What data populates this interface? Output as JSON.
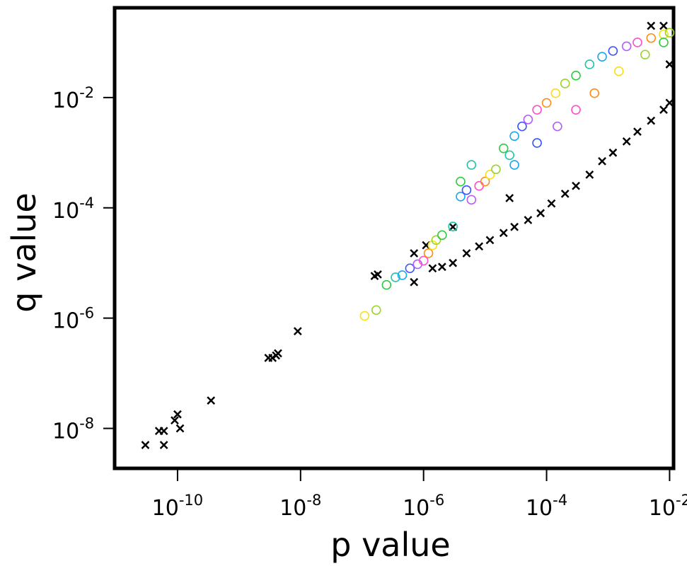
{
  "chart_data": {
    "type": "scatter",
    "title": "",
    "xlabel": "p value",
    "ylabel": "q value",
    "x_scale": "log10",
    "y_scale": "log10",
    "xlim": [
      1e-11,
      0.011
    ],
    "ylim": [
      2e-09,
      0.4
    ],
    "x_ticks": [
      {
        "value": 1e-10,
        "base": "10",
        "exp": "-10"
      },
      {
        "value": 1e-08,
        "base": "10",
        "exp": "-8"
      },
      {
        "value": 1e-06,
        "base": "10",
        "exp": "-6"
      },
      {
        "value": 0.0001,
        "base": "10",
        "exp": "-4"
      },
      {
        "value": 0.01,
        "base": "10",
        "exp": "-2"
      }
    ],
    "y_ticks": [
      {
        "value": 1e-08,
        "base": "10",
        "exp": "-8"
      },
      {
        "value": 1e-06,
        "base": "10",
        "exp": "-6"
      },
      {
        "value": 0.0001,
        "base": "10",
        "exp": "-4"
      },
      {
        "value": 0.01,
        "base": "10",
        "exp": "-2"
      }
    ],
    "grid": false,
    "legend": "none",
    "series": [
      {
        "marker": "x",
        "color": "#000000",
        "points": [
          [
            3e-11,
            5e-09
          ],
          [
            5e-11,
            9e-09
          ],
          [
            6e-11,
            9e-09
          ],
          [
            6e-11,
            5e-09
          ],
          [
            9e-11,
            1.4e-08
          ],
          [
            1e-10,
            1.8e-08
          ],
          [
            1.1e-10,
            1e-08
          ],
          [
            3.5e-10,
            3.2e-08
          ],
          [
            3e-09,
            1.9e-07
          ],
          [
            3.5e-09,
            1.9e-07
          ],
          [
            4e-09,
            2.1e-07
          ],
          [
            4.3e-09,
            2.3e-07
          ],
          [
            9e-09,
            5.8e-07
          ],
          [
            1.6e-07,
            5.8e-06
          ],
          [
            1.8e-07,
            6.2e-06
          ],
          [
            7e-07,
            1.5e-05
          ],
          [
            7e-07,
            4.5e-06
          ],
          [
            1.1e-06,
            2.1e-05
          ],
          [
            1.4e-06,
            8e-06
          ],
          [
            2e-06,
            8.5e-06
          ],
          [
            3e-06,
            1e-05
          ],
          [
            5e-06,
            1.5e-05
          ],
          [
            8e-06,
            2e-05
          ],
          [
            1.2e-05,
            2.6e-05
          ],
          [
            2e-05,
            3.5e-05
          ],
          [
            3e-05,
            4.5e-05
          ],
          [
            5e-05,
            6e-05
          ],
          [
            8e-05,
            8e-05
          ],
          [
            0.00012,
            0.00012
          ],
          [
            0.0002,
            0.00018
          ],
          [
            0.0003,
            0.00025
          ],
          [
            0.0005,
            0.0004
          ],
          [
            0.0008,
            0.0007
          ],
          [
            0.0012,
            0.001
          ],
          [
            0.002,
            0.0016
          ],
          [
            0.003,
            0.0024
          ],
          [
            0.005,
            0.0038
          ],
          [
            0.008,
            0.006
          ],
          [
            0.01,
            0.008
          ],
          [
            0.01,
            0.04
          ],
          [
            0.005,
            0.2
          ],
          [
            0.008,
            0.2
          ],
          [
            3e-06,
            4.5e-05
          ],
          [
            2.5e-05,
            0.00015
          ]
        ]
      },
      {
        "marker": "o",
        "colors": [
          "#f6e01a",
          "#9bd42a",
          "#2ecc40",
          "#22c5a6",
          "#1aa8ef",
          "#3a53ff",
          "#b05cff",
          "#ff4fc8",
          "#ff8c1a"
        ],
        "points": [
          [
            1.1e-07,
            1.1e-06
          ],
          [
            1.7e-07,
            1.4e-06
          ],
          [
            2.5e-07,
            4e-06
          ],
          [
            3.5e-07,
            5.5e-06
          ],
          [
            4.5e-07,
            6e-06
          ],
          [
            6e-07,
            8e-06
          ],
          [
            8e-07,
            9.5e-06
          ],
          [
            1e-06,
            1.1e-05
          ],
          [
            1.2e-06,
            1.5e-05
          ],
          [
            1.4e-06,
            2.1e-05
          ],
          [
            1.6e-06,
            2.6e-05
          ],
          [
            2e-06,
            3.2e-05
          ],
          [
            3e-06,
            4.6e-05
          ],
          [
            4e-06,
            0.00016
          ],
          [
            5e-06,
            0.00021
          ],
          [
            6e-06,
            0.00014
          ],
          [
            8e-06,
            0.00025
          ],
          [
            1e-05,
            0.0003
          ],
          [
            1.2e-05,
            0.0004
          ],
          [
            1.5e-05,
            0.0005
          ],
          [
            2e-05,
            0.0012
          ],
          [
            2.5e-05,
            0.0009
          ],
          [
            3e-05,
            0.002
          ],
          [
            4e-05,
            0.003
          ],
          [
            5e-05,
            0.004
          ],
          [
            7e-05,
            0.006
          ],
          [
            0.0001,
            0.008
          ],
          [
            0.00014,
            0.012
          ],
          [
            0.0002,
            0.018
          ],
          [
            0.0003,
            0.025
          ],
          [
            0.0005,
            0.04
          ],
          [
            0.0008,
            0.055
          ],
          [
            0.0012,
            0.07
          ],
          [
            0.002,
            0.085
          ],
          [
            0.003,
            0.1
          ],
          [
            0.005,
            0.12
          ],
          [
            0.008,
            0.14
          ],
          [
            0.01,
            0.15
          ],
          [
            4e-06,
            0.0003
          ],
          [
            6e-06,
            0.0006
          ],
          [
            3e-05,
            0.0006
          ],
          [
            7e-05,
            0.0015
          ],
          [
            0.00015,
            0.003
          ],
          [
            0.0003,
            0.006
          ],
          [
            0.0006,
            0.012
          ],
          [
            0.0015,
            0.03
          ],
          [
            0.004,
            0.06
          ],
          [
            0.008,
            0.1
          ]
        ]
      }
    ]
  }
}
